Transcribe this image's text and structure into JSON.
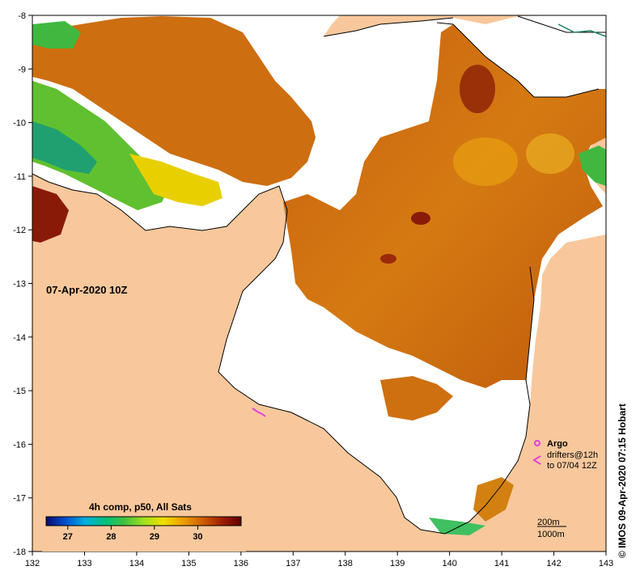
{
  "map": {
    "timestamp": "07-Apr-2020 10Z",
    "composite_label": "4h comp, p50, All Sats",
    "x_ticks": [
      "132",
      "133",
      "134",
      "135",
      "136",
      "137",
      "138",
      "139",
      "140",
      "141",
      "142",
      "143"
    ],
    "y_ticks": [
      "-8",
      "-9",
      "-10",
      "-11",
      "-12",
      "-13",
      "-14",
      "-15",
      "-16",
      "-17",
      "-18"
    ],
    "colorbar_ticks": [
      "27",
      "28",
      "29",
      "30"
    ],
    "colorbar_range": [
      26.5,
      31.0
    ],
    "colorbar_stops": [
      "#0a0a6e",
      "#0050d0",
      "#00b0e0",
      "#00c080",
      "#40c040",
      "#a0e020",
      "#f0e000",
      "#f0a000",
      "#d06000",
      "#a02000",
      "#600000"
    ],
    "land_color": "#f8c89c",
    "no_data_color": "#ffffff",
    "legend": {
      "argo_label": "Argo",
      "drifters_label": "drifters@12h",
      "drifters_date": "to 07/04 12Z",
      "argo_color": "#e040e0",
      "drifter_color": "#e040e0"
    },
    "contours": {
      "label_200m": "200m",
      "label_1000m": "1000m"
    },
    "credit": "© IMOS 09-Apr-2020 07:15 Hobart"
  }
}
